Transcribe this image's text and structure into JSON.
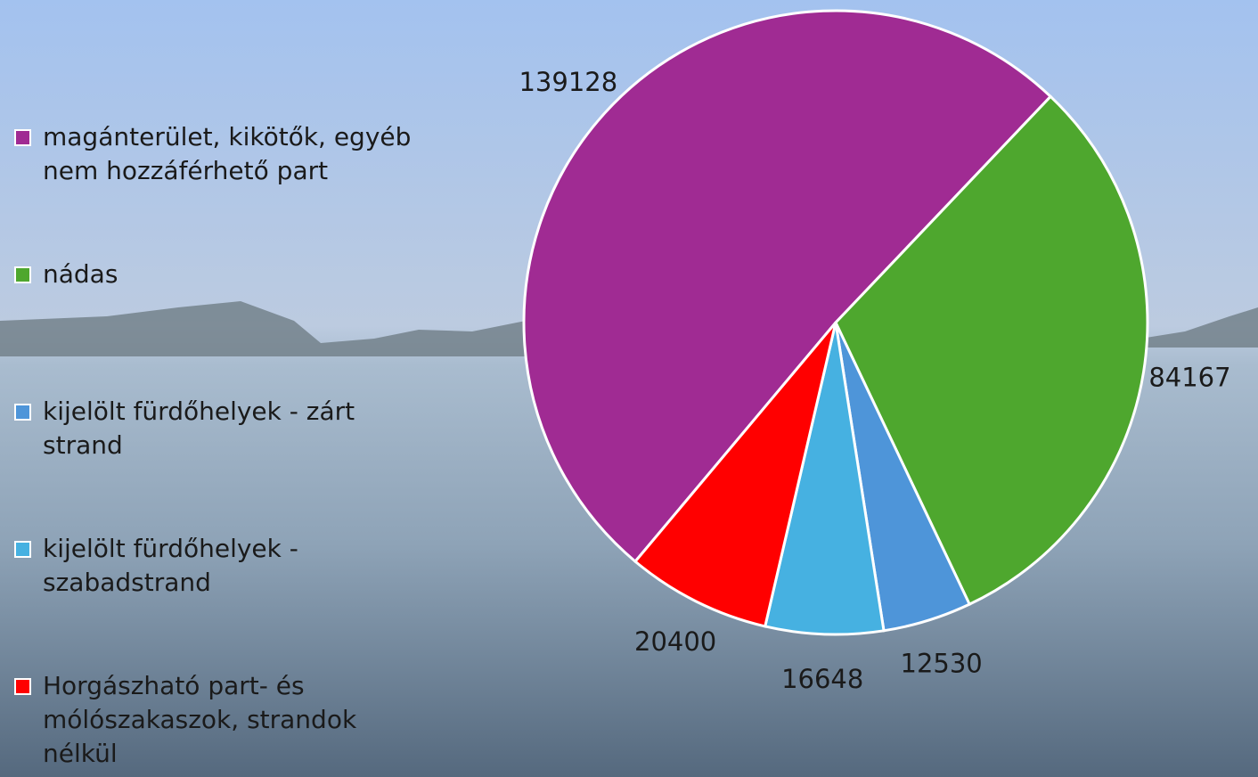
{
  "chart_data": {
    "type": "pie",
    "categories": [
      "magánterület, kikötők, egyéb nem hozzáférhető part",
      "nádas",
      "kijelölt fürdőhelyek - zárt strand",
      "kijelölt fürdőhelyek - szabadstrand",
      "Horgászható part- és mólószakaszok, strandok nélkül"
    ],
    "values": [
      139128,
      84167,
      12530,
      16648,
      20400
    ],
    "colors": [
      "#a02b93",
      "#4ea72e",
      "#4e95d9",
      "#46b1e1",
      "#ff0000"
    ],
    "legend": "left"
  }
}
